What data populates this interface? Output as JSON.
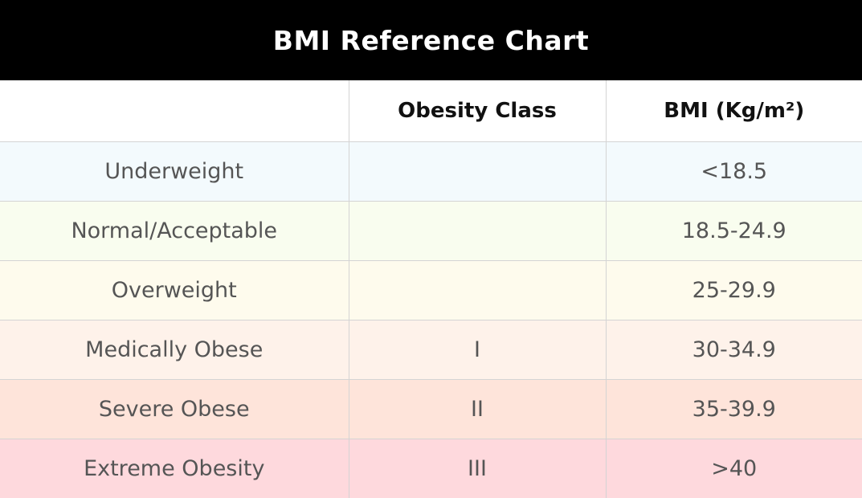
{
  "title": "BMI Reference Chart",
  "columns": [
    "",
    "Obesity Class",
    "BMI (Kg/m²)"
  ],
  "rows": [
    {
      "category": "Underweight",
      "obesity_class": "",
      "bmi": "<18.5",
      "color": "#f3fafd"
    },
    {
      "category": "Normal/Acceptable",
      "obesity_class": "",
      "bmi": "18.5-24.9",
      "color": "#f9fdef"
    },
    {
      "category": "Overweight",
      "obesity_class": "",
      "bmi": "25-29.9",
      "color": "#fefbed"
    },
    {
      "category": "Medically Obese",
      "obesity_class": "I",
      "bmi": "30-34.9",
      "color": "#fef2ea"
    },
    {
      "category": "Severe Obese",
      "obesity_class": "II",
      "bmi": "35-39.9",
      "color": "#fee4da"
    },
    {
      "category": "Extreme Obesity",
      "obesity_class": "III",
      "bmi": ">40",
      "color": "#fed9dd"
    }
  ]
}
